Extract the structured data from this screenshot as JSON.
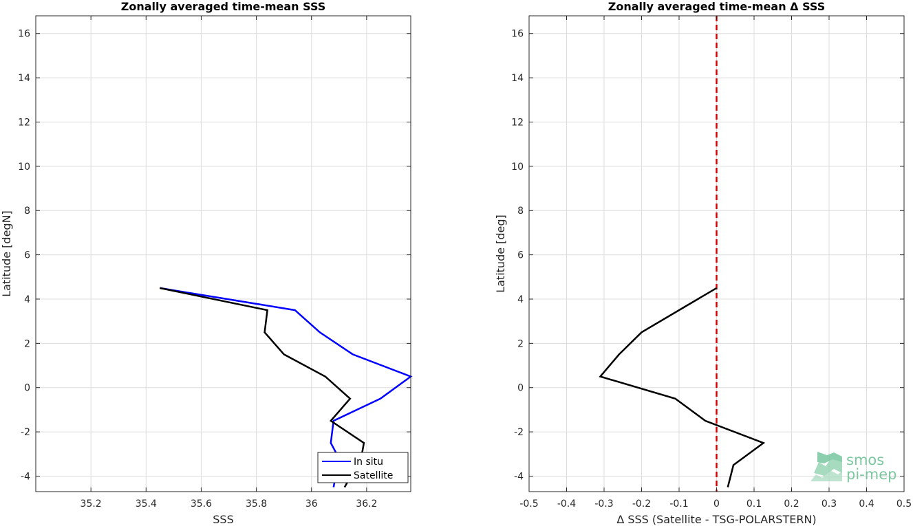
{
  "chart_data": [
    {
      "type": "line",
      "title": "Zonally averaged time-mean SSS",
      "xlabel": "SSS",
      "ylabel": "Latitude [degN]",
      "xlim": [
        35.0,
        36.36
      ],
      "ylim": [
        -4.7,
        16.8
      ],
      "xticks": [
        35.2,
        35.4,
        35.6,
        35.8,
        36.0,
        36.2
      ],
      "xtick_labels": [
        "35.2",
        "35.4",
        "35.6",
        "35.8",
        "36",
        "36.2"
      ],
      "yticks": [
        -4,
        -2,
        0,
        2,
        4,
        6,
        8,
        10,
        12,
        14,
        16
      ],
      "ytick_labels": [
        "-4",
        "-2",
        "0",
        "2",
        "4",
        "6",
        "8",
        "10",
        "12",
        "14",
        "16"
      ],
      "grid": true,
      "legend_position": "bottom-right",
      "series": [
        {
          "name": "In situ",
          "color": "#0000ff",
          "points": [
            [
              35.45,
              4.5
            ],
            [
              35.94,
              3.5
            ],
            [
              36.03,
              2.5
            ],
            [
              36.15,
              1.5
            ],
            [
              36.36,
              0.5
            ],
            [
              36.25,
              -0.5
            ],
            [
              36.08,
              -1.5
            ],
            [
              36.07,
              -2.5
            ],
            [
              36.1,
              -3.2
            ],
            [
              36.08,
              -4.5
            ]
          ]
        },
        {
          "name": "Satellite",
          "color": "#000000",
          "points": [
            [
              35.45,
              4.5
            ],
            [
              35.84,
              3.5
            ],
            [
              35.83,
              2.5
            ],
            [
              35.9,
              1.5
            ],
            [
              36.05,
              0.5
            ],
            [
              36.14,
              -0.5
            ],
            [
              36.07,
              -1.5
            ],
            [
              36.19,
              -2.5
            ],
            [
              36.18,
              -3.2
            ],
            [
              36.12,
              -4.5
            ]
          ]
        }
      ]
    },
    {
      "type": "line",
      "title": "Zonally averaged time-mean Δ SSS",
      "xlabel": "Δ SSS (Satellite - TSG-POLARSTERN)",
      "ylabel": "Latitude [deg]",
      "xlim": [
        -0.5,
        0.5
      ],
      "ylim": [
        -4.7,
        16.8
      ],
      "xticks": [
        -0.5,
        -0.4,
        -0.3,
        -0.2,
        -0.1,
        0,
        0.1,
        0.2,
        0.3,
        0.4,
        0.5
      ],
      "xtick_labels": [
        "-0.5",
        "-0.4",
        "-0.3",
        "-0.2",
        "-0.1",
        "0",
        "0.1",
        "0.2",
        "0.3",
        "0.4",
        "0.5"
      ],
      "yticks": [
        -4,
        -2,
        0,
        2,
        4,
        6,
        8,
        10,
        12,
        14,
        16
      ],
      "ytick_labels": [
        "-4",
        "-2",
        "0",
        "2",
        "4",
        "6",
        "8",
        "10",
        "12",
        "14",
        "16"
      ],
      "grid": true,
      "reference_line": {
        "x": 0,
        "color": "#dd0000",
        "style": "dashed"
      },
      "series": [
        {
          "color": "#000000",
          "points": [
            [
              0.0,
              4.5
            ],
            [
              -0.2,
              2.5
            ],
            [
              -0.26,
              1.5
            ],
            [
              -0.31,
              0.5
            ],
            [
              -0.11,
              -0.5
            ],
            [
              -0.03,
              -1.5
            ],
            [
              0.125,
              -2.5
            ],
            [
              0.045,
              -3.5
            ],
            [
              0.03,
              -4.5
            ]
          ]
        }
      ]
    }
  ],
  "logo": {
    "line1": "smos",
    "line2": "pi-mep",
    "color": "#7cc7a0"
  }
}
